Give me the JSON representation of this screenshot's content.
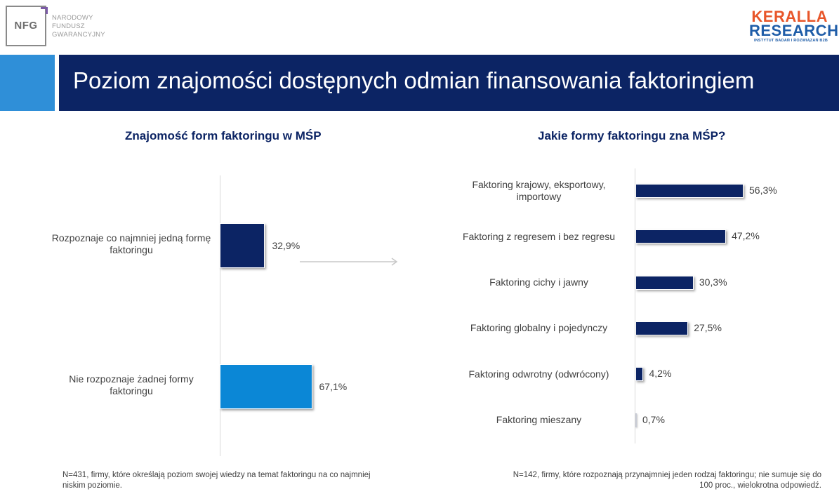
{
  "logos": {
    "nfg_mark": "NFG",
    "nfg_name": "NARODOWY\nFUNDUSZ\nGWARANCYJNY",
    "keralla_line1": "KERALLA",
    "keralla_line2": "RESEARCH",
    "keralla_tagline": "INSTYTUT BADAŃ I ROZWIĄZAŃ B2B"
  },
  "title": "Poziom znajomości dostępnych odmian finansowania faktoringiem",
  "colors": {
    "title_band": "#0c2464",
    "title_accent": "#2f8fd8",
    "bar_dark": "#0c2464",
    "bar_light": "#0b87d6"
  },
  "chart_data": [
    {
      "type": "bar",
      "orientation": "horizontal",
      "title": "Znajomość form faktoringu w MŚP",
      "categories": [
        "Rozpoznaje co najmniej jedną formę faktoringu",
        "Nie rozpoznaje żadnej formy faktoringu"
      ],
      "values": [
        32.9,
        67.1
      ],
      "value_labels": [
        "32,9%",
        "67,1%"
      ],
      "unit": "%",
      "xlim": [
        0,
        100
      ],
      "note": "N=431, firmy, które określają poziom swojej wiedzy na temat faktoringu na co najmniej niskim poziomie."
    },
    {
      "type": "bar",
      "orientation": "horizontal",
      "title": "Jakie formy faktoringu zna MŚP?",
      "categories": [
        "Faktoring krajowy, eksportowy, importowy",
        "Faktoring z regresem i bez regresu",
        "Faktoring cichy i jawny",
        "Faktoring globalny i pojedynczy",
        "Faktoring odwrotny (odwrócony)",
        "Faktoring mieszany"
      ],
      "values": [
        56.3,
        47.2,
        30.3,
        27.5,
        4.2,
        0.7
      ],
      "value_labels": [
        "56,3%",
        "47,2%",
        "30,3%",
        "27,5%",
        "4,2%",
        "0,7%"
      ],
      "unit": "%",
      "xlim": [
        0,
        100
      ],
      "note": "N=142, firmy, które rozpoznają przynajmniej jeden rodzaj faktoringu; nie sumuje się do 100 proc., wielokrotna odpowiedź."
    }
  ]
}
